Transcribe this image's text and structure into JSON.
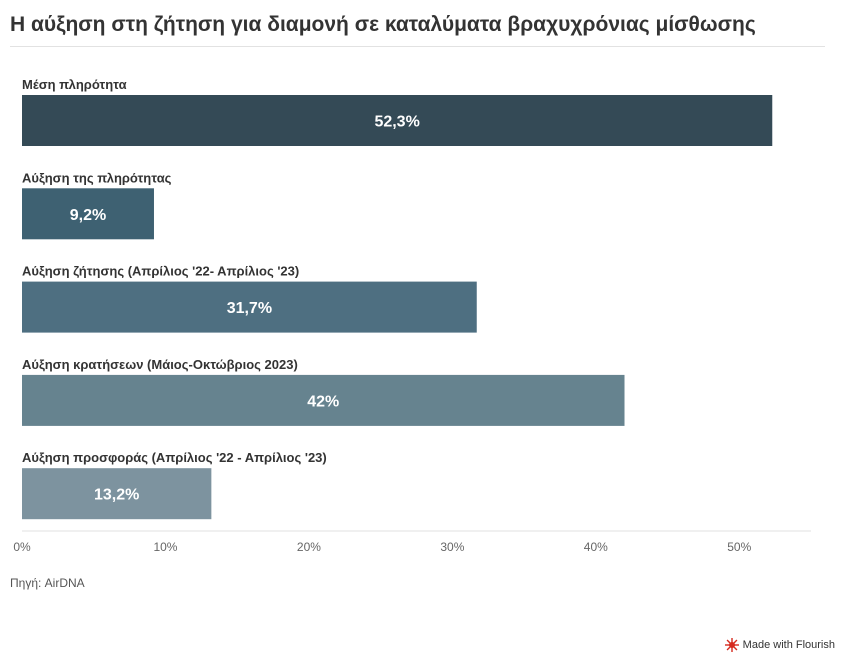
{
  "title": "Η αύξηση στη ζήτηση για διαμονή σε καταλύματα βραχυχρόνιας μίσθωσης",
  "source": "Πηγή: AirDNA",
  "footer": {
    "flourish": "Made with Flourish"
  },
  "chart_data": {
    "type": "bar",
    "orientation": "horizontal",
    "categories": [
      "Μέση πληρότητα",
      "Αύξηση της πληρότητας",
      "Αύξηση ζήτησης (Απρίλιος '22- Απρίλιος '23)",
      "Αύξηση κρατήσεων (Μάιος-Οκτώβριος 2023)",
      "Αύξηση προσφοράς (Απρίλιος '22 - Απρίλιος '23)"
    ],
    "values": [
      52.3,
      9.2,
      31.7,
      42,
      13.2
    ],
    "value_labels": [
      "52,3%",
      "9,2%",
      "31,7%",
      "42%",
      "13,2%"
    ],
    "colors": [
      "#344a56",
      "#3e6172",
      "#4e6f81",
      "#66838f",
      "#7d939f"
    ],
    "xlim": [
      0,
      55
    ],
    "xticks": [
      0,
      10,
      20,
      30,
      40,
      50
    ],
    "xtick_labels": [
      "0%",
      "10%",
      "20%",
      "30%",
      "40%",
      "50%"
    ],
    "grid": false,
    "legend": "none"
  }
}
